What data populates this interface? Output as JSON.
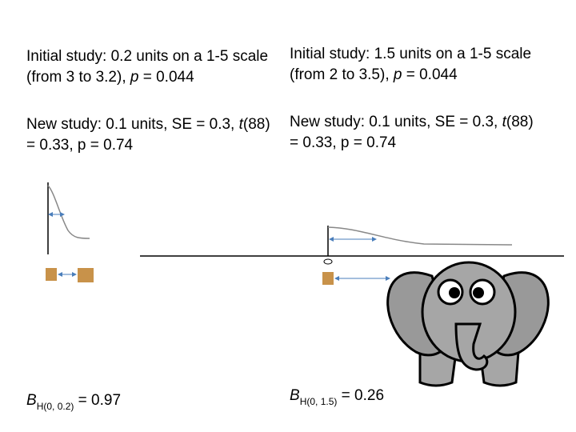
{
  "left": {
    "initial": [
      "Initial study: 0.2 units on a 1-5 scale (from 3 to 3.2), ",
      "p",
      " = 0.044"
    ],
    "new": [
      "New study: 0.1 units, SE = 0.3, ",
      "t",
      "(88) = 0.33, p  = 0.74"
    ],
    "bayes": [
      "B",
      "H(0, 0.2)",
      " = 0.97"
    ]
  },
  "right": {
    "initial": [
      "Initial study: 1.5 units on a 1-5 scale (from 2 to 3.5), ",
      "p",
      " = 0.044"
    ],
    "new": [
      "New study: 0.1 units, SE = 0.3, ",
      "t",
      "(88) = 0.33, p  = 0.74"
    ],
    "bayes": [
      "B",
      "H(0, 1.5)",
      " = 0.26"
    ]
  }
}
